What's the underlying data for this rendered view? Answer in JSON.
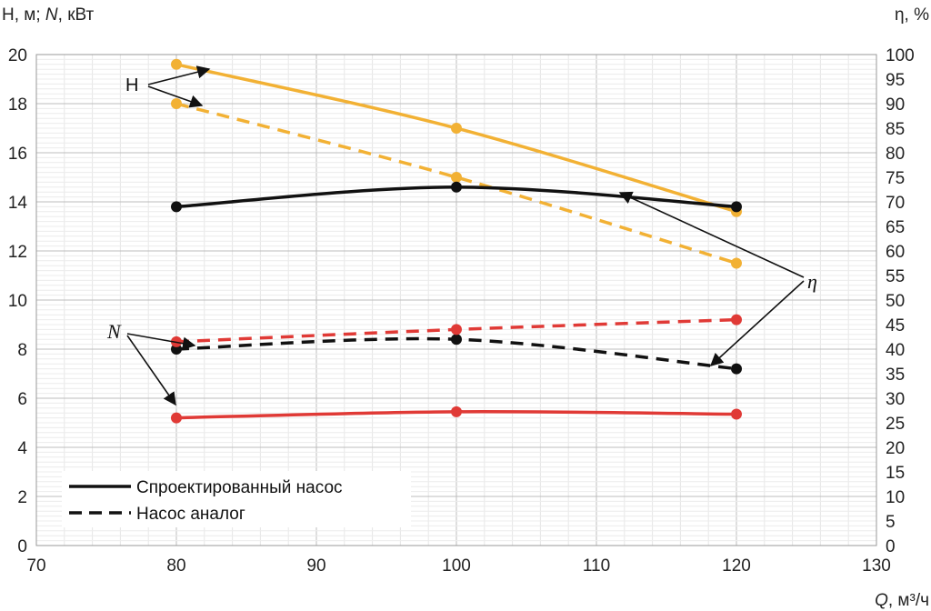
{
  "chart_data": {
    "type": "line",
    "x_axis": {
      "label_var": "Q",
      "label_unit": ", м³/ч",
      "range": [
        70,
        130
      ],
      "ticks": [
        "70",
        "80",
        "90",
        "100",
        "110",
        "120",
        "130"
      ]
    },
    "y_left": {
      "label_prefix": "H, м; ",
      "label_var": "N",
      "label_suffix": ", кВт",
      "range": [
        0,
        20
      ],
      "ticks": [
        "0",
        "2",
        "4",
        "6",
        "8",
        "10",
        "12",
        "14",
        "16",
        "18",
        "20"
      ]
    },
    "y_right": {
      "label": "η, %",
      "range": [
        0,
        100
      ],
      "ticks": [
        "0",
        "5",
        "10",
        "15",
        "20",
        "25",
        "30",
        "35",
        "40",
        "45",
        "50",
        "55",
        "60",
        "65",
        "70",
        "75",
        "80",
        "85",
        "90",
        "95",
        "100"
      ]
    },
    "grid": true,
    "series": [
      {
        "quantity": "H",
        "pump": "designed",
        "axis": "left",
        "color": "#f2b134",
        "style": "solid",
        "x": [
          80,
          100,
          120
        ],
        "y": [
          19.6,
          17.0,
          13.6
        ]
      },
      {
        "quantity": "H",
        "pump": "analog",
        "axis": "left",
        "color": "#f2b134",
        "style": "dashed",
        "x": [
          80,
          100,
          120
        ],
        "y": [
          18.0,
          15.0,
          11.5
        ]
      },
      {
        "quantity": "eta",
        "pump": "designed",
        "axis": "right",
        "color": "#111111",
        "style": "solid",
        "x": [
          80,
          100,
          120
        ],
        "y": [
          69,
          73,
          69
        ]
      },
      {
        "quantity": "eta",
        "pump": "analog",
        "axis": "right",
        "color": "#111111",
        "style": "dashed",
        "x": [
          80,
          100,
          120
        ],
        "y": [
          40,
          42,
          36
        ]
      },
      {
        "quantity": "N",
        "pump": "designed",
        "axis": "left",
        "color": "#e03a36",
        "style": "solid",
        "x": [
          80,
          100,
          120
        ],
        "y": [
          5.2,
          5.45,
          5.35
        ]
      },
      {
        "quantity": "N",
        "pump": "analog",
        "axis": "left",
        "color": "#e03a36",
        "style": "dashed",
        "x": [
          80,
          100,
          120
        ],
        "y": [
          8.3,
          8.8,
          9.2
        ]
      }
    ],
    "legend": {
      "placement": "bottom-left",
      "entries": [
        {
          "label": "Спроектированный насос",
          "style": "solid"
        },
        {
          "label": "Насос аналог",
          "style": "dashed"
        }
      ]
    },
    "annotations": {
      "H": "H",
      "N": "N",
      "eta": "η"
    }
  }
}
